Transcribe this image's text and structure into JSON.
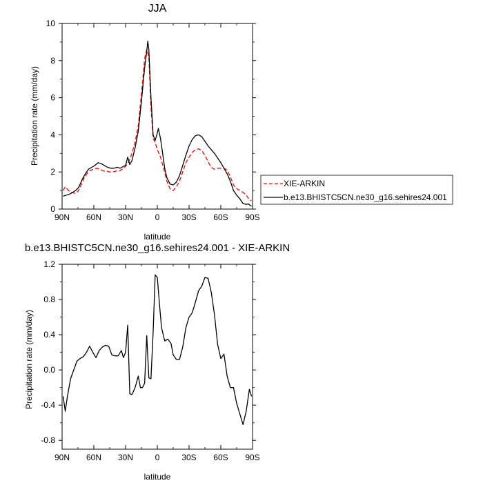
{
  "chart_data": [
    {
      "type": "line",
      "title": "JJA",
      "xlabel": "latitude",
      "ylabel": "Precipitation rate (mm/day)",
      "xlim": [
        90,
        -90
      ],
      "ylim": [
        0,
        10
      ],
      "xticks": [
        90,
        60,
        30,
        0,
        -30,
        -60,
        -90
      ],
      "xtick_labels": [
        "90N",
        "60N",
        "30N",
        "0",
        "30S",
        "60S",
        "90S"
      ],
      "yticks": [
        0,
        2,
        4,
        6,
        8,
        10
      ],
      "ytick_labels": [
        "0",
        "2",
        "4",
        "6",
        "8",
        "10"
      ],
      "grid": false,
      "legend_position": "right",
      "series": [
        {
          "name": "XIE-ARKIN",
          "color": "#ff0000",
          "dash": "dashed",
          "points": [
            [
              89,
              1.0
            ],
            [
              87,
              1.2
            ],
            [
              84,
              1.0
            ],
            [
              81,
              0.9
            ],
            [
              78,
              0.85
            ],
            [
              75,
              0.95
            ],
            [
              72,
              1.3
            ],
            [
              69,
              1.7
            ],
            [
              66,
              1.95
            ],
            [
              63,
              2.1
            ],
            [
              60,
              2.15
            ],
            [
              57,
              2.2
            ],
            [
              54,
              2.15
            ],
            [
              51,
              2.05
            ],
            [
              48,
              2.05
            ],
            [
              45,
              2.0
            ],
            [
              42,
              2.0
            ],
            [
              39,
              2.05
            ],
            [
              36,
              2.05
            ],
            [
              33,
              2.15
            ],
            [
              30,
              2.3
            ],
            [
              27,
              2.55
            ],
            [
              24,
              3.0
            ],
            [
              21,
              3.6
            ],
            [
              18,
              4.5
            ],
            [
              15,
              6.2
            ],
            [
              12,
              8.1
            ],
            [
              10,
              8.6
            ],
            [
              8,
              8.2
            ],
            [
              6,
              5.5
            ],
            [
              4,
              3.8
            ],
            [
              2,
              3.6
            ],
            [
              0,
              3.2
            ],
            [
              -3,
              2.8
            ],
            [
              -6,
              2.2
            ],
            [
              -9,
              1.5
            ],
            [
              -12,
              1.1
            ],
            [
              -15,
              1.0
            ],
            [
              -18,
              1.2
            ],
            [
              -21,
              1.5
            ],
            [
              -24,
              2.0
            ],
            [
              -27,
              2.5
            ],
            [
              -30,
              2.8
            ],
            [
              -33,
              3.05
            ],
            [
              -36,
              3.2
            ],
            [
              -39,
              3.25
            ],
            [
              -42,
              3.15
            ],
            [
              -45,
              2.9
            ],
            [
              -48,
              2.55
            ],
            [
              -51,
              2.25
            ],
            [
              -54,
              2.15
            ],
            [
              -57,
              2.2
            ],
            [
              -60,
              2.2
            ],
            [
              -63,
              2.2
            ],
            [
              -66,
              2.1
            ],
            [
              -69,
              1.75
            ],
            [
              -72,
              1.3
            ],
            [
              -75,
              1.1
            ],
            [
              -78,
              1.0
            ],
            [
              -81,
              0.9
            ],
            [
              -84,
              0.75
            ],
            [
              -87,
              0.5
            ],
            [
              -89,
              0.45
            ]
          ]
        },
        {
          "name": "b.e13.BHISTC5CN.ne30_g16.sehires24.001",
          "color": "#000000",
          "dash": "solid",
          "points": [
            [
              89,
              0.7
            ],
            [
              86,
              0.75
            ],
            [
              83,
              0.8
            ],
            [
              80,
              0.9
            ],
            [
              77,
              1.0
            ],
            [
              74,
              1.2
            ],
            [
              71,
              1.6
            ],
            [
              68,
              1.9
            ],
            [
              65,
              2.15
            ],
            [
              62,
              2.25
            ],
            [
              59,
              2.35
            ],
            [
              56,
              2.5
            ],
            [
              53,
              2.45
            ],
            [
              50,
              2.35
            ],
            [
              47,
              2.25
            ],
            [
              44,
              2.2
            ],
            [
              41,
              2.2
            ],
            [
              38,
              2.25
            ],
            [
              35,
              2.2
            ],
            [
              32,
              2.3
            ],
            [
              30,
              2.35
            ],
            [
              28,
              2.8
            ],
            [
              26,
              2.4
            ],
            [
              24,
              2.6
            ],
            [
              21,
              3.3
            ],
            [
              18,
              4.2
            ],
            [
              15,
              5.8
            ],
            [
              12,
              7.6
            ],
            [
              10,
              8.5
            ],
            [
              9,
              9.05
            ],
            [
              8,
              8.6
            ],
            [
              6,
              6.0
            ],
            [
              4,
              4.0
            ],
            [
              2,
              3.7
            ],
            [
              0,
              4.1
            ],
            [
              -1,
              4.35
            ],
            [
              -3,
              3.8
            ],
            [
              -5,
              3.0
            ],
            [
              -7,
              2.2
            ],
            [
              -9,
              1.7
            ],
            [
              -12,
              1.35
            ],
            [
              -15,
              1.3
            ],
            [
              -18,
              1.45
            ],
            [
              -21,
              1.8
            ],
            [
              -24,
              2.35
            ],
            [
              -27,
              2.9
            ],
            [
              -30,
              3.4
            ],
            [
              -33,
              3.75
            ],
            [
              -36,
              3.95
            ],
            [
              -39,
              4.0
            ],
            [
              -42,
              3.9
            ],
            [
              -45,
              3.65
            ],
            [
              -48,
              3.4
            ],
            [
              -51,
              3.2
            ],
            [
              -54,
              3.0
            ],
            [
              -57,
              2.75
            ],
            [
              -60,
              2.5
            ],
            [
              -63,
              2.2
            ],
            [
              -66,
              1.9
            ],
            [
              -69,
              1.5
            ],
            [
              -72,
              1.0
            ],
            [
              -75,
              0.75
            ],
            [
              -78,
              0.55
            ],
            [
              -81,
              0.3
            ],
            [
              -84,
              0.25
            ],
            [
              -86,
              0.28
            ],
            [
              -89,
              0.15
            ]
          ]
        }
      ]
    },
    {
      "type": "line",
      "title": "b.e13.BHISTC5CN.ne30_g16.sehires24.001 - XIE-ARKIN",
      "xlabel": "latitude",
      "ylabel": "Precipitation rate (mm/day)",
      "xlim": [
        90,
        -90
      ],
      "ylim": [
        -0.9,
        1.2
      ],
      "xticks": [
        90,
        60,
        30,
        0,
        -30,
        -60,
        -90
      ],
      "xtick_labels": [
        "90N",
        "60N",
        "30N",
        "0",
        "30S",
        "60S",
        "90S"
      ],
      "yticks": [
        -0.8,
        -0.4,
        0.0,
        0.4,
        0.8,
        1.2
      ],
      "ytick_labels": [
        "-0.8",
        "-0.4",
        "0.0",
        "0.4",
        "0.8",
        "1.2"
      ],
      "grid": false,
      "series": [
        {
          "color": "#000000",
          "dash": "solid",
          "points": [
            [
              89,
              -0.3
            ],
            [
              87,
              -0.47
            ],
            [
              85,
              -0.3
            ],
            [
              82,
              -0.1
            ],
            [
              79,
              0.0
            ],
            [
              76,
              0.1
            ],
            [
              73,
              0.13
            ],
            [
              70,
              0.15
            ],
            [
              67,
              0.2
            ],
            [
              64,
              0.27
            ],
            [
              61,
              0.2
            ],
            [
              58,
              0.14
            ],
            [
              55,
              0.22
            ],
            [
              52,
              0.26
            ],
            [
              49,
              0.28
            ],
            [
              46,
              0.27
            ],
            [
              43,
              0.17
            ],
            [
              40,
              0.16
            ],
            [
              37,
              0.16
            ],
            [
              34,
              0.22
            ],
            [
              32,
              0.14
            ],
            [
              30,
              0.2
            ],
            [
              28,
              0.51
            ],
            [
              26,
              -0.27
            ],
            [
              24,
              -0.28
            ],
            [
              21,
              -0.2
            ],
            [
              18,
              -0.07
            ],
            [
              16,
              -0.2
            ],
            [
              14,
              -0.2
            ],
            [
              12,
              -0.15
            ],
            [
              10,
              0.39
            ],
            [
              8,
              -0.09
            ],
            [
              6,
              -0.1
            ],
            [
              4,
              0.42
            ],
            [
              2,
              1.08
            ],
            [
              0,
              1.05
            ],
            [
              -2,
              0.75
            ],
            [
              -4,
              0.48
            ],
            [
              -7,
              0.33
            ],
            [
              -10,
              0.35
            ],
            [
              -13,
              0.3
            ],
            [
              -15,
              0.17
            ],
            [
              -18,
              0.12
            ],
            [
              -21,
              0.12
            ],
            [
              -24,
              0.26
            ],
            [
              -27,
              0.48
            ],
            [
              -30,
              0.6
            ],
            [
              -33,
              0.65
            ],
            [
              -36,
              0.77
            ],
            [
              -39,
              0.9
            ],
            [
              -42,
              0.95
            ],
            [
              -45,
              1.05
            ],
            [
              -48,
              1.04
            ],
            [
              -51,
              0.88
            ],
            [
              -54,
              0.63
            ],
            [
              -57,
              0.29
            ],
            [
              -60,
              0.13
            ],
            [
              -63,
              0.18
            ],
            [
              -66,
              -0.07
            ],
            [
              -69,
              -0.2
            ],
            [
              -72,
              -0.2
            ],
            [
              -75,
              -0.38
            ],
            [
              -78,
              -0.5
            ],
            [
              -81,
              -0.62
            ],
            [
              -84,
              -0.47
            ],
            [
              -87,
              -0.22
            ],
            [
              -89,
              -0.3
            ]
          ]
        }
      ]
    }
  ]
}
